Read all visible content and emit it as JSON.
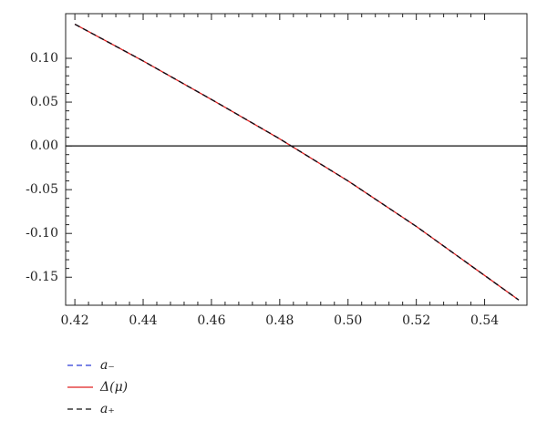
{
  "chart_data": {
    "type": "line",
    "x": [
      0.42,
      0.44,
      0.46,
      0.48,
      0.5,
      0.52,
      0.54,
      0.55
    ],
    "series": [
      {
        "name": "a₋",
        "color": "#2a3bd6",
        "dash": "dashed",
        "values": [
          0.139,
          0.097,
          0.053,
          0.008,
          -0.04,
          -0.092,
          -0.148,
          -0.176
        ]
      },
      {
        "name": "Δ(μ)",
        "color": "#e02020",
        "dash": "solid",
        "values": [
          0.139,
          0.097,
          0.053,
          0.008,
          -0.04,
          -0.092,
          -0.148,
          -0.176
        ]
      },
      {
        "name": "a₊",
        "color": "#111111",
        "dash": "dashed",
        "values": [
          0.139,
          0.097,
          0.053,
          0.008,
          -0.04,
          -0.092,
          -0.148,
          -0.176
        ]
      }
    ],
    "xlim": [
      0.4173,
      0.5524
    ],
    "xticks": [
      0.42,
      0.44,
      0.46,
      0.48,
      {
        "value": 0.5,
        "label": "0.50"
      },
      0.52,
      0.54
    ],
    "ylim": [
      -0.182,
      0.151
    ],
    "yticks": [
      {
        "value": 0.1,
        "label": "0.10"
      },
      0.05,
      {
        "value": 0,
        "label": "0.00"
      },
      -0.05,
      {
        "value": -0.1,
        "label": "-0.10"
      },
      -0.15
    ],
    "zero_line": true,
    "legend": "bottom-left"
  }
}
